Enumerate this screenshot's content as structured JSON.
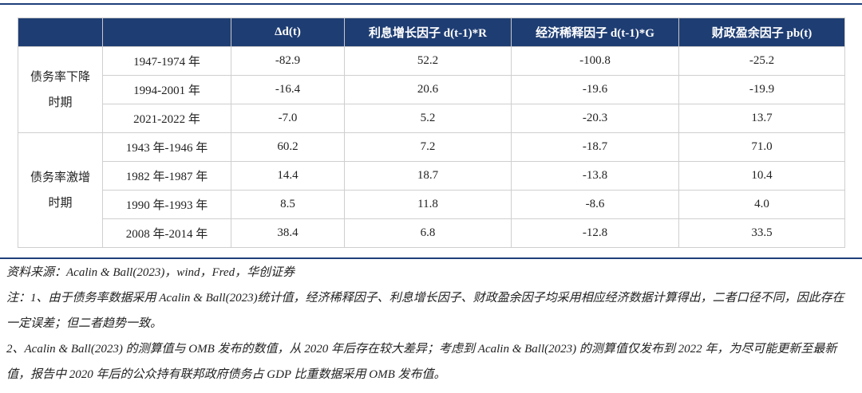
{
  "table": {
    "header": [
      "Δd(t)",
      "利息增长因子 d(t-1)*R",
      "经济稀释因子 d(t-1)*G",
      "财政盈余因子 pb(t)"
    ],
    "groups": [
      {
        "label": "债务率下降时期",
        "rows": [
          [
            "1947-1974 年",
            "-82.9",
            "52.2",
            "-100.8",
            "-25.2"
          ],
          [
            "1994-2001 年",
            "-16.4",
            "20.6",
            "-19.6",
            "-19.9"
          ],
          [
            "2021-2022 年",
            "-7.0",
            "5.2",
            "-20.3",
            "13.7"
          ]
        ]
      },
      {
        "label": "债务率激增时期",
        "rows": [
          [
            "1943 年-1946 年",
            "60.2",
            "7.2",
            "-18.7",
            "71.0"
          ],
          [
            "1982 年-1987 年",
            "14.4",
            "18.7",
            "-13.8",
            "10.4"
          ],
          [
            "1990 年-1993 年",
            "8.5",
            "11.8",
            "-8.6",
            "4.0"
          ],
          [
            "2008 年-2014 年",
            "38.4",
            "6.8",
            "-12.8",
            "33.5"
          ]
        ]
      }
    ]
  },
  "notes": {
    "source": "资料来源：Acalin & Ball(2023)，wind，Fred，华创证券",
    "items": [
      "注：1、由于债务率数据采用 Acalin & Ball(2023)统计值，经济稀释因子、利息增长因子、财政盈余因子均采用相应经济数据计算得出，二者口径不同，因此存在一定误差；但二者趋势一致。",
      "2、Acalin & Ball(2023) 的测算值与 OMB 发布的数值，从 2020 年后存在较大差异；考虑到 Acalin & Ball(2023) 的测算值仅发布到 2022 年，为尽可能更新至最新值，报告中 2020 年后的公众持有联邦政府债务占 GDP 比重数据采用 OMB 发布值。"
    ]
  }
}
